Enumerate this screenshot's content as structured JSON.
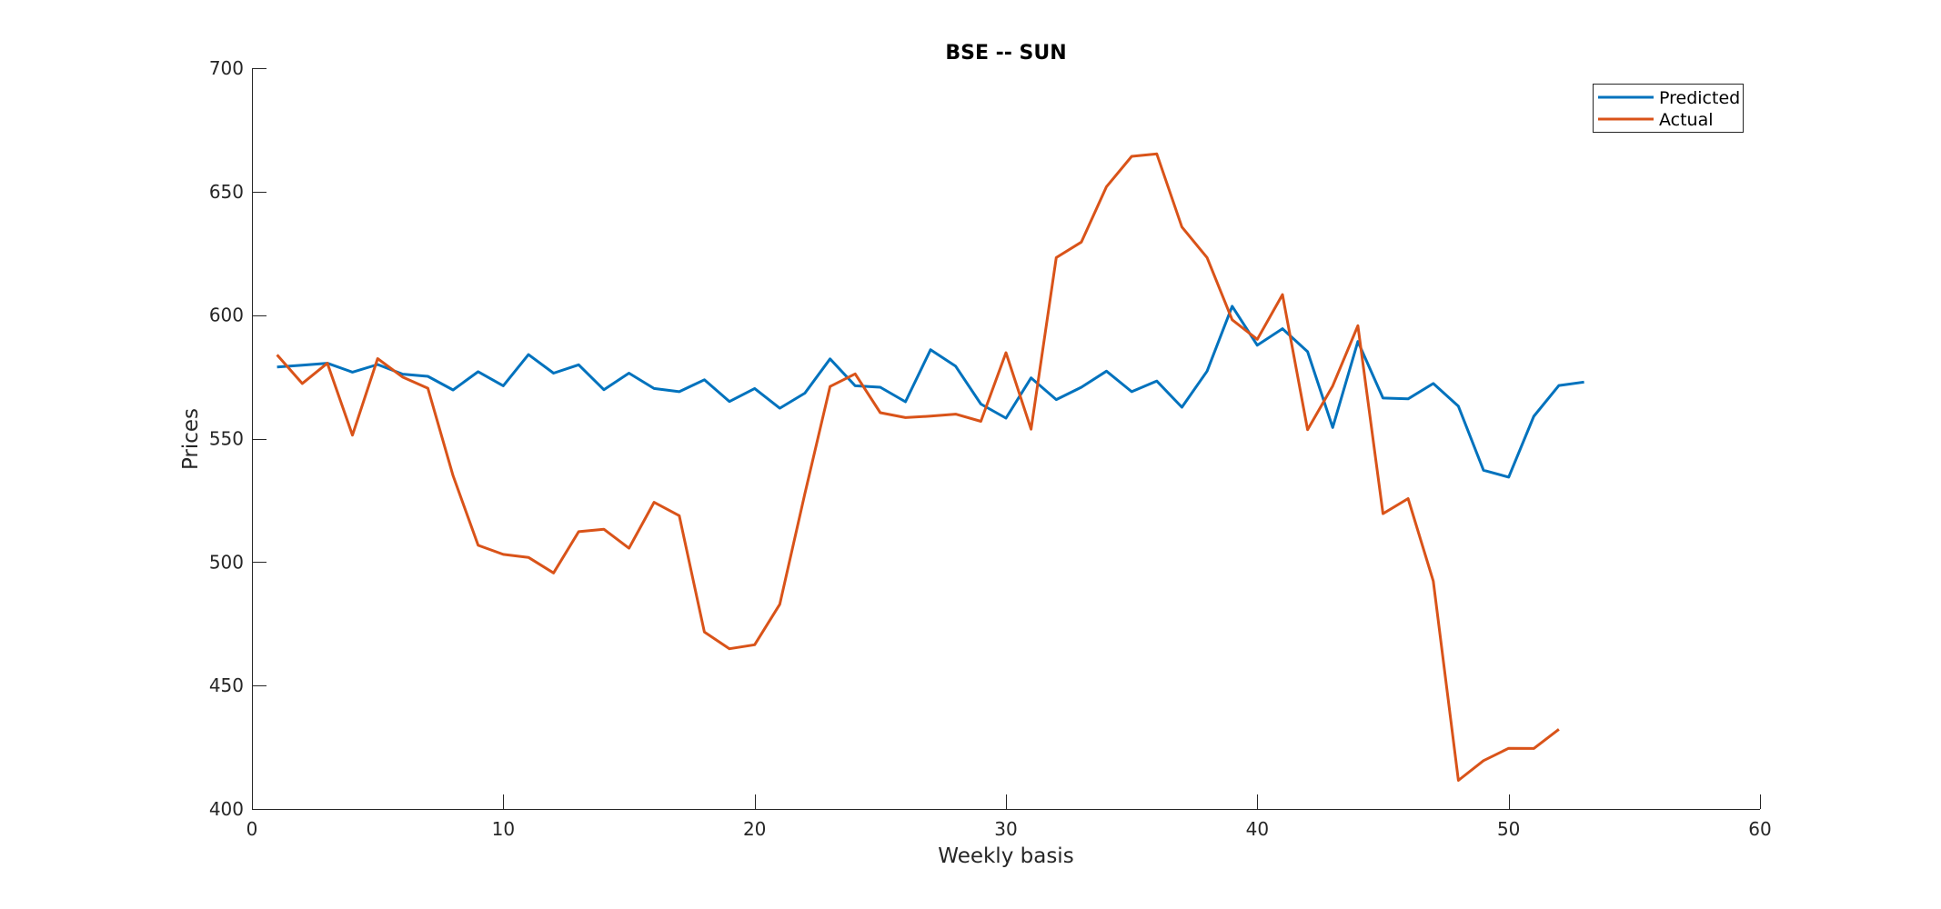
{
  "chart_data": {
    "type": "line",
    "title": "BSE -- SUN",
    "xlabel": "Weekly basis",
    "ylabel": "Prices",
    "xlim": [
      0,
      60
    ],
    "ylim": [
      400,
      700
    ],
    "xticks": [
      0,
      10,
      20,
      30,
      40,
      50,
      60
    ],
    "yticks": [
      400,
      450,
      500,
      550,
      600,
      650,
      700
    ],
    "xtick_labels": [
      "0",
      "10",
      "20",
      "30",
      "40",
      "50",
      "60"
    ],
    "ytick_labels": [
      "400",
      "450",
      "500",
      "550",
      "600",
      "650",
      "700"
    ],
    "grid": false,
    "legend_position": "top-right",
    "series": [
      {
        "name": "Predicted",
        "color": "#0072BD",
        "x": [
          1,
          2,
          3,
          4,
          5,
          6,
          7,
          8,
          9,
          10,
          11,
          12,
          13,
          14,
          15,
          16,
          17,
          18,
          19,
          20,
          21,
          22,
          23,
          24,
          25,
          26,
          27,
          28,
          29,
          30,
          31,
          32,
          33,
          34,
          35,
          36,
          37,
          38,
          39,
          40,
          41,
          42,
          43,
          44,
          45,
          46,
          47,
          48,
          49,
          50,
          51,
          52,
          53
        ],
        "values": [
          579,
          579.7,
          580.5,
          576.9,
          580,
          576.1,
          575.2,
          569.7,
          577.1,
          571.4,
          584,
          576.5,
          579.9,
          569.8,
          576.5,
          570.3,
          569,
          573.8,
          565,
          570.3,
          562.3,
          568.4,
          582.3,
          571.4,
          570.8,
          564.9,
          586,
          579.3,
          564,
          558.3,
          574.6,
          565.8,
          570.8,
          577.3,
          569,
          573.3,
          562.7,
          577.3,
          603.6,
          587.8,
          594.5,
          585.2,
          554.5,
          589.3,
          566.4,
          566.1,
          572.3,
          563.1,
          537.2,
          534.4,
          559,
          571.5,
          572.9
        ]
      },
      {
        "name": "Actual",
        "color": "#D95319",
        "x": [
          1,
          2,
          3,
          4,
          5,
          6,
          7,
          8,
          9,
          10,
          11,
          12,
          13,
          14,
          15,
          16,
          17,
          18,
          19,
          20,
          21,
          22,
          23,
          24,
          25,
          26,
          27,
          28,
          29,
          30,
          31,
          32,
          33,
          34,
          35,
          36,
          37,
          38,
          39,
          40,
          41,
          42,
          43,
          44,
          45,
          46,
          47,
          48,
          49,
          50,
          51,
          52
        ],
        "values": [
          583.9,
          572.3,
          580.5,
          551.4,
          582.4,
          574.9,
          570.4,
          535,
          506.8,
          503.1,
          501.9,
          495.6,
          512.3,
          513.3,
          505.6,
          524.2,
          518.8,
          471.7,
          464.9,
          466.5,
          482.9,
          527.7,
          571.1,
          576.2,
          560.5,
          558.5,
          559.1,
          559.9,
          557,
          584.8,
          553.8,
          623.3,
          629.6,
          652,
          664.3,
          665.3,
          635.7,
          623.3,
          598.1,
          590.2,
          608.3,
          553.6,
          571.3,
          595.7,
          519.6,
          525.7,
          492.3,
          411.6,
          419.6,
          424.6,
          424.5,
          432.3
        ]
      }
    ]
  }
}
